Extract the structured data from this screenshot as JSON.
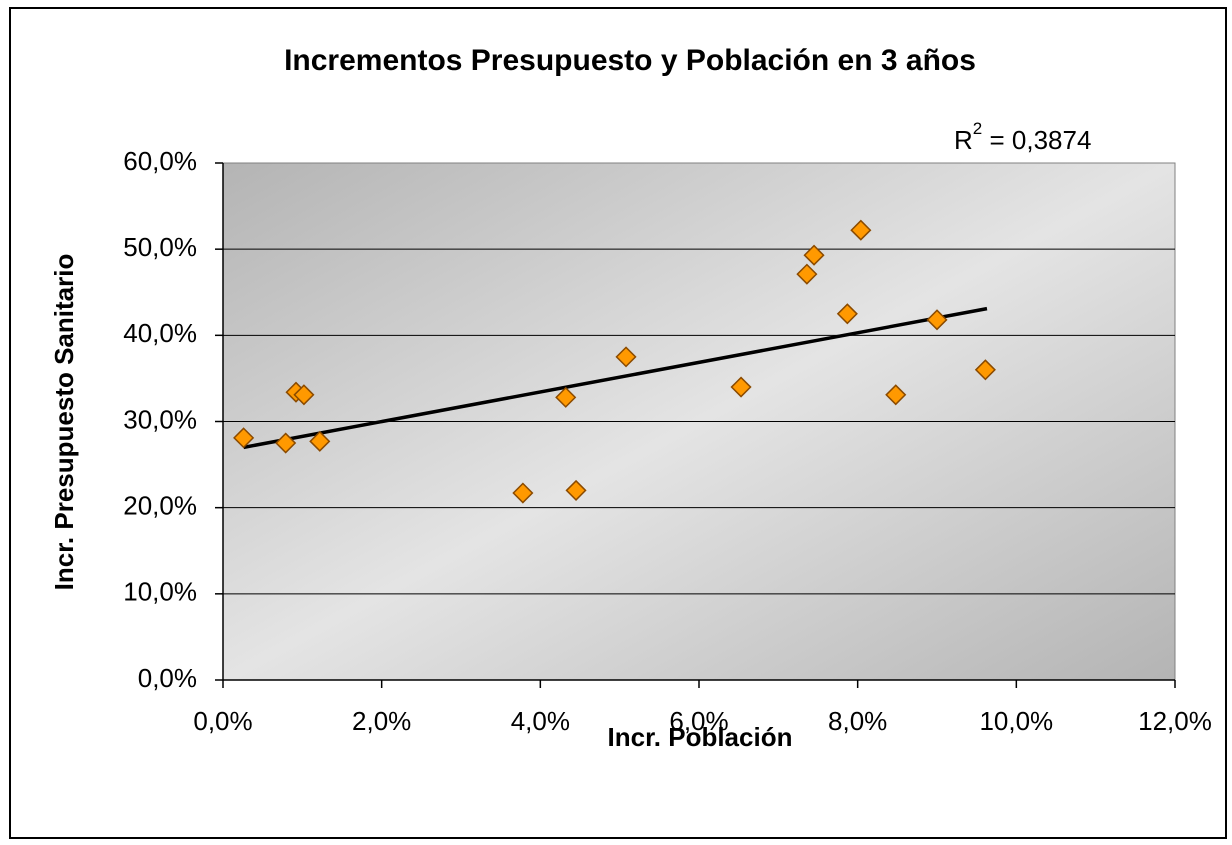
{
  "chart_data": {
    "type": "scatter",
    "title": "Incrementos Presupuesto y Población en 3 años",
    "x_label": "Incr. Población",
    "y_label": "Incr. Presupuesto Sanitario",
    "annotation": {
      "base": "R",
      "sup": "2",
      "text": " = 0,3874"
    },
    "series": [
      {
        "color": "#ff9900",
        "x": [
          0.26,
          0.79,
          0.92,
          1.02,
          1.22,
          3.78,
          4.32,
          4.45,
          5.08,
          6.53,
          7.36,
          7.45,
          7.87,
          8.04,
          8.48,
          9.0,
          9.61
        ],
        "values": [
          28.1,
          27.5,
          33.4,
          33.1,
          27.7,
          21.7,
          32.8,
          22.0,
          37.5,
          34.0,
          47.1,
          49.3,
          42.5,
          52.2,
          33.1,
          41.8,
          36.0
        ]
      }
    ],
    "trendline": {
      "x": [
        0.26,
        9.63
      ],
      "values": [
        27.0,
        43.1
      ],
      "color": "#000000"
    },
    "xlim": [
      0,
      12
    ],
    "ylim": [
      0,
      60
    ],
    "xticks": [
      {
        "value": 0,
        "label": "0,0%"
      },
      {
        "value": 2,
        "label": "2,0%"
      },
      {
        "value": 4,
        "label": "4,0%"
      },
      {
        "value": 6,
        "label": "6,0%"
      },
      {
        "value": 8,
        "label": "8,0%"
      },
      {
        "value": 10,
        "label": "10,0%"
      },
      {
        "value": 12,
        "label": "12,0%"
      }
    ],
    "yticks": [
      {
        "value": 0,
        "label": "0,0%"
      },
      {
        "value": 10,
        "label": "10,0%"
      },
      {
        "value": 20,
        "label": "20,0%"
      },
      {
        "value": 30,
        "label": "30,0%"
      },
      {
        "value": 40,
        "label": "40,0%"
      },
      {
        "value": 50,
        "label": "50,0%"
      },
      {
        "value": 60,
        "label": "60,0%"
      }
    ],
    "grid": true
  }
}
